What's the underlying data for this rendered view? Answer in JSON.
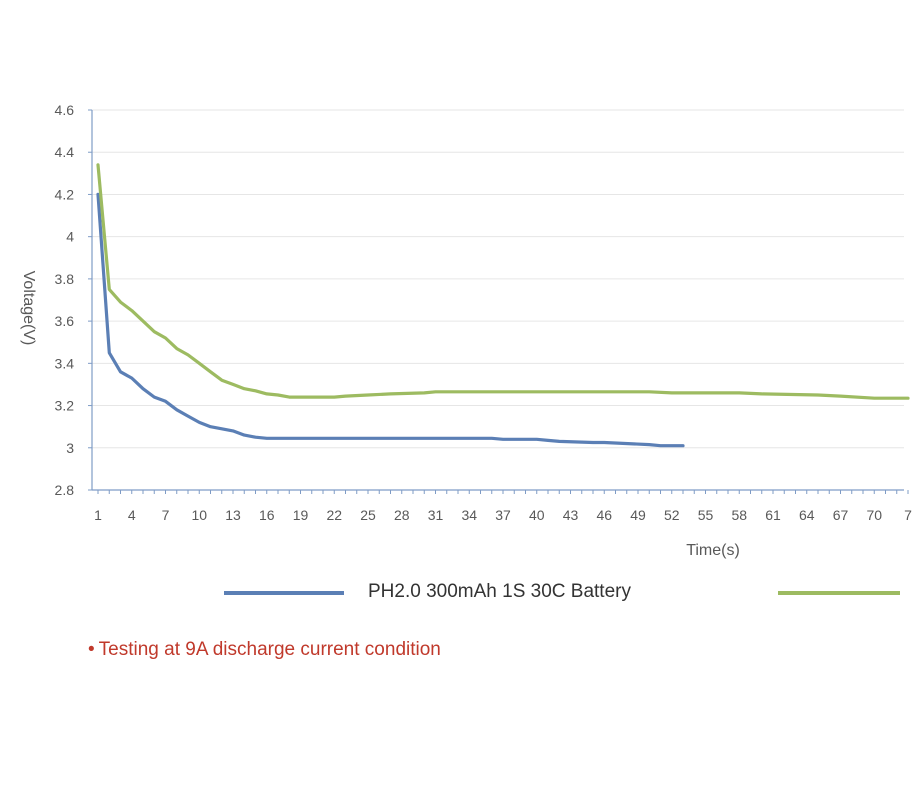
{
  "colors": {
    "series_blue": "#5b7fb5",
    "series_green": "#9dbb61",
    "axis": "#7f9cc6",
    "grid": "#e6e6e6",
    "note": "#c0392b"
  },
  "note": {
    "bullet": "•",
    "text": "Testing at 9A discharge current condition"
  },
  "chart_data": {
    "type": "line",
    "title": "",
    "xlabel": "Time(s)",
    "ylabel": "Voltage(V)",
    "ylim": [
      2.8,
      4.6
    ],
    "xlim": [
      1,
      73
    ],
    "grid": "horizontal",
    "legend_position": "bottom",
    "x_tick_labels": [
      "1",
      "4",
      "7",
      "10",
      "13",
      "16",
      "19",
      "22",
      "25",
      "28",
      "31",
      "34",
      "37",
      "40",
      "43",
      "46",
      "49",
      "52",
      "55",
      "58",
      "61",
      "64",
      "67",
      "70",
      "7"
    ],
    "y_tick_labels": [
      "2.8",
      "3",
      "3.2",
      "3.4",
      "3.6",
      "3.8",
      "4",
      "4.2",
      "4.4",
      "4.6"
    ],
    "series": [
      {
        "name": "PH2.0 300mAh 1S 30C Battery",
        "color": "#5b7fb5",
        "x": [
          1,
          2,
          3,
          4,
          5,
          6,
          7,
          8,
          9,
          10,
          11,
          12,
          13,
          14,
          15,
          16,
          20,
          25,
          30,
          35,
          36,
          37,
          40,
          41,
          42,
          45,
          46,
          50,
          51,
          52,
          53
        ],
        "y": [
          4.2,
          3.45,
          3.36,
          3.33,
          3.28,
          3.24,
          3.22,
          3.18,
          3.15,
          3.12,
          3.1,
          3.09,
          3.08,
          3.06,
          3.05,
          3.045,
          3.045,
          3.045,
          3.045,
          3.045,
          3.045,
          3.04,
          3.04,
          3.035,
          3.03,
          3.025,
          3.025,
          3.015,
          3.01,
          3.01,
          3.01
        ]
      },
      {
        "series_note": "second series, legend label not shown",
        "color": "#9dbb61",
        "x": [
          1,
          2,
          3,
          4,
          5,
          6,
          7,
          8,
          9,
          10,
          11,
          12,
          13,
          14,
          15,
          16,
          17,
          18,
          20,
          22,
          23,
          25,
          27,
          30,
          31,
          35,
          40,
          45,
          50,
          52,
          55,
          58,
          60,
          65,
          67,
          70,
          73
        ],
        "y": [
          4.34,
          3.75,
          3.69,
          3.65,
          3.6,
          3.55,
          3.52,
          3.47,
          3.44,
          3.4,
          3.36,
          3.32,
          3.3,
          3.28,
          3.27,
          3.255,
          3.25,
          3.24,
          3.24,
          3.24,
          3.245,
          3.25,
          3.255,
          3.26,
          3.265,
          3.265,
          3.265,
          3.265,
          3.265,
          3.26,
          3.26,
          3.26,
          3.255,
          3.25,
          3.245,
          3.235,
          3.235
        ]
      }
    ]
  }
}
